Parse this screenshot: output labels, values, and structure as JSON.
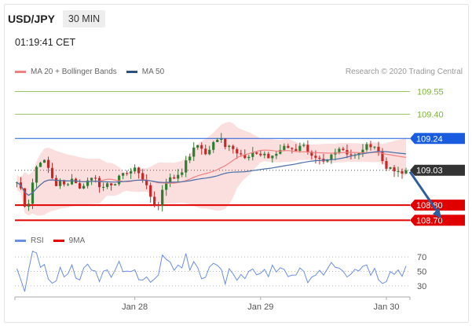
{
  "header": {
    "symbol": "USD/JPY",
    "timeframe": "30 MIN",
    "clock": "01:19:41 CET"
  },
  "legend": [
    {
      "label": "MA 20 + Bollinger Bands",
      "color": "#f08080"
    },
    {
      "label": "MA 50",
      "color": "#2c4f7c"
    }
  ],
  "copyright": "Research © 2020 Trading Central",
  "rsi_legend": [
    {
      "label": "RSI",
      "color": "#6a8ee0"
    },
    {
      "label": "9MA",
      "color": "#e00000"
    }
  ],
  "chart_data": {
    "type": "candlestick",
    "price_range": [
      108.65,
      109.62
    ],
    "x_labels": [
      {
        "label": "Jan 28",
        "index": 30
      },
      {
        "label": "Jan 29",
        "index": 62
      },
      {
        "label": "Jan 30",
        "index": 94
      }
    ],
    "bar_count": 100,
    "levels": [
      {
        "value": 109.55,
        "label": "109.55",
        "kind": "target",
        "color": "#7bb53a"
      },
      {
        "value": 109.4,
        "label": "109.40",
        "kind": "target",
        "color": "#7bb53a"
      },
      {
        "value": 109.24,
        "label": "109.24",
        "kind": "pivot",
        "color": "#1a5ce0"
      },
      {
        "value": 109.03,
        "label": "109.03",
        "kind": "last",
        "color": "#333333"
      },
      {
        "value": 108.8,
        "label": "108.80",
        "kind": "support",
        "color": "#e00000"
      },
      {
        "value": 108.7,
        "label": "108.70",
        "kind": "support",
        "color": "#e00000"
      }
    ],
    "forecast_arrow": {
      "from": {
        "index": 100,
        "value": 109.02
      },
      "to": {
        "index": 108,
        "value": 108.71
      },
      "color": "#2f5d9e"
    },
    "price_path": [
      108.95,
      108.9,
      108.74,
      108.92,
      109.05,
      109.1,
      109.08,
      109.0,
      108.93,
      108.96,
      108.92,
      108.98,
      108.96,
      108.9,
      108.95,
      108.97,
      109.0,
      108.93,
      108.9,
      108.95,
      108.93,
      108.98,
      109.03,
      109.0,
      109.05,
      109.02,
      108.97,
      108.89,
      108.82,
      108.78,
      108.92,
      108.98,
      108.97,
      109.0,
      109.03,
      109.1,
      109.15,
      109.2,
      109.18,
      109.12,
      109.2,
      109.22,
      109.25,
      109.18,
      109.2,
      109.16,
      109.14,
      109.1,
      109.12,
      109.15,
      109.13,
      109.14,
      109.1,
      109.13,
      109.16,
      109.2,
      109.18,
      109.15,
      109.2,
      109.19,
      109.13,
      109.1,
      109.1,
      109.08,
      109.1,
      109.15,
      109.18,
      109.17,
      109.14,
      109.13,
      109.12,
      109.17,
      109.19,
      109.2,
      109.18,
      109.1,
      109.05,
      109.03,
      109.02,
      109.0,
      109.03
    ],
    "rsi": {
      "levels": [
        70,
        50,
        30
      ],
      "range": [
        20,
        80
      ]
    }
  }
}
